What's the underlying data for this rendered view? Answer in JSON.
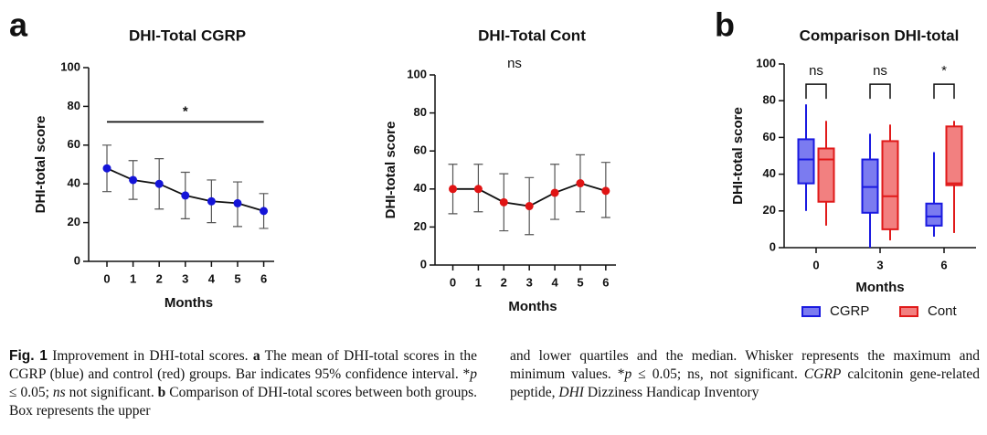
{
  "panel_labels": [
    "a",
    "b"
  ],
  "chart_data": [
    {
      "type": "line",
      "title": "DHI-Total CGRP",
      "xlabel": "Months",
      "ylabel": "DHI-total score",
      "x": [
        0,
        1,
        2,
        3,
        4,
        5,
        6
      ],
      "xlim": [
        -0.7,
        6.4
      ],
      "xticks": [
        0,
        1,
        2,
        3,
        4,
        5,
        6
      ],
      "ylim": [
        0,
        100
      ],
      "yticks": [
        0,
        20,
        40,
        60,
        80,
        100
      ],
      "series": [
        {
          "color": "#1414d8",
          "values": [
            48,
            42,
            40,
            34,
            31,
            30,
            26
          ],
          "ci_low": [
            36,
            32,
            27,
            22,
            20,
            18,
            17
          ],
          "ci_high": [
            60,
            52,
            53,
            46,
            42,
            41,
            35
          ]
        }
      ],
      "annotations": [
        {
          "text": "*",
          "x0": 0,
          "x1": 6,
          "y": 72
        }
      ]
    },
    {
      "type": "line",
      "title": "DHI-Total Cont",
      "xlabel": "Months",
      "ylabel": "DHI-total score",
      "x": [
        0,
        1,
        2,
        3,
        4,
        5,
        6
      ],
      "xlim": [
        -0.7,
        6.4
      ],
      "xticks": [
        0,
        1,
        2,
        3,
        4,
        5,
        6
      ],
      "ylim": [
        0,
        100
      ],
      "yticks": [
        0,
        20,
        40,
        60,
        80,
        100
      ],
      "series": [
        {
          "color": "#e01414",
          "values": [
            40,
            40,
            33,
            31,
            38,
            43,
            39
          ],
          "ci_low": [
            27,
            28,
            18,
            16,
            24,
            28,
            25
          ],
          "ci_high": [
            53,
            53,
            48,
            46,
            53,
            58,
            54
          ]
        }
      ],
      "annotations": [
        {
          "text": "ns"
        }
      ]
    },
    {
      "type": "box",
      "title": "Comparison DHI-total",
      "xlabel": "Months",
      "ylabel": "DHI-total score",
      "categories": [
        "0",
        "3",
        "6"
      ],
      "ylim": [
        0,
        100
      ],
      "yticks": [
        0,
        20,
        40,
        60,
        80,
        100
      ],
      "legend": "bottom",
      "series": [
        {
          "name": "CGRP",
          "color": "#1a1ae0",
          "fill": "#7b7bf0",
          "min": [
            20,
            0,
            6
          ],
          "q1": [
            35,
            19,
            12
          ],
          "median": [
            48,
            33,
            17
          ],
          "q3": [
            59,
            48,
            24
          ],
          "max": [
            78,
            62,
            52
          ]
        },
        {
          "name": "Cont",
          "color": "#e01a1a",
          "fill": "#f28080",
          "min": [
            12,
            4,
            8
          ],
          "q1": [
            25,
            10,
            34
          ],
          "median": [
            48,
            28,
            35
          ],
          "q3": [
            54,
            58,
            66
          ],
          "max": [
            69,
            67,
            69
          ]
        }
      ],
      "annotations": [
        {
          "text": "ns",
          "category": 0,
          "y": 89
        },
        {
          "text": "ns",
          "category": 1,
          "y": 89
        },
        {
          "text": "*",
          "category": 2,
          "y": 89
        }
      ]
    }
  ],
  "caption": {
    "left": [
      {
        "text": "Fig. 1",
        "style": "fig"
      },
      {
        "text": " Improvement in DHI-total scores. "
      },
      {
        "text": "a",
        "style": "bold"
      },
      {
        "text": " The mean of DHI-total scores in the CGRP (blue) and control (red) groups. Bar indicates 95% confidence interval. *"
      },
      {
        "text": "p",
        "style": "italic"
      },
      {
        "text": " ≤ 0.05; "
      },
      {
        "text": "ns",
        "style": "italic"
      },
      {
        "text": " not significant. "
      },
      {
        "text": "b",
        "style": "bold"
      },
      {
        "text": " Comparison of DHI-total scores between both groups. Box represents the upper"
      }
    ],
    "right": [
      {
        "text": "and lower quartiles and the median. Whisker represents the maximum and minimum values. *"
      },
      {
        "text": "p",
        "style": "italic"
      },
      {
        "text": " ≤ 0.05; ns, not significant. "
      },
      {
        "text": "CGRP",
        "style": "italic"
      },
      {
        "text": " calcitonin gene-related peptide, "
      },
      {
        "text": "DHI",
        "style": "italic"
      },
      {
        "text": " Dizziness Handicap Inventory"
      }
    ]
  }
}
